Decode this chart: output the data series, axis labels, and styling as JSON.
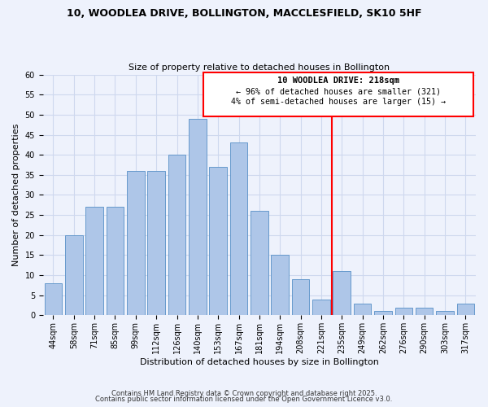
{
  "title": "10, WOODLEA DRIVE, BOLLINGTON, MACCLESFIELD, SK10 5HF",
  "subtitle": "Size of property relative to detached houses in Bollington",
  "xlabel": "Distribution of detached houses by size in Bollington",
  "ylabel": "Number of detached properties",
  "bar_labels": [
    "44sqm",
    "58sqm",
    "71sqm",
    "85sqm",
    "99sqm",
    "112sqm",
    "126sqm",
    "140sqm",
    "153sqm",
    "167sqm",
    "181sqm",
    "194sqm",
    "208sqm",
    "221sqm",
    "235sqm",
    "249sqm",
    "262sqm",
    "276sqm",
    "290sqm",
    "303sqm",
    "317sqm"
  ],
  "bar_values": [
    8,
    20,
    27,
    27,
    36,
    36,
    40,
    49,
    37,
    43,
    26,
    15,
    9,
    4,
    11,
    3,
    1,
    2,
    2,
    1,
    3
  ],
  "bar_color": "#aec6e8",
  "bar_edge_color": "#6699cc",
  "reference_line_index": 14,
  "annotation_title": "10 WOODLEA DRIVE: 218sqm",
  "annotation_line1": "← 96% of detached houses are smaller (321)",
  "annotation_line2": "4% of semi-detached houses are larger (15) →",
  "ylim": [
    0,
    60
  ],
  "yticks": [
    0,
    5,
    10,
    15,
    20,
    25,
    30,
    35,
    40,
    45,
    50,
    55,
    60
  ],
  "grid_color": "#ced8ee",
  "background_color": "#eef2fc",
  "footnote1": "Contains HM Land Registry data © Crown copyright and database right 2025.",
  "footnote2": "Contains public sector information licensed under the Open Government Licence v3.0."
}
